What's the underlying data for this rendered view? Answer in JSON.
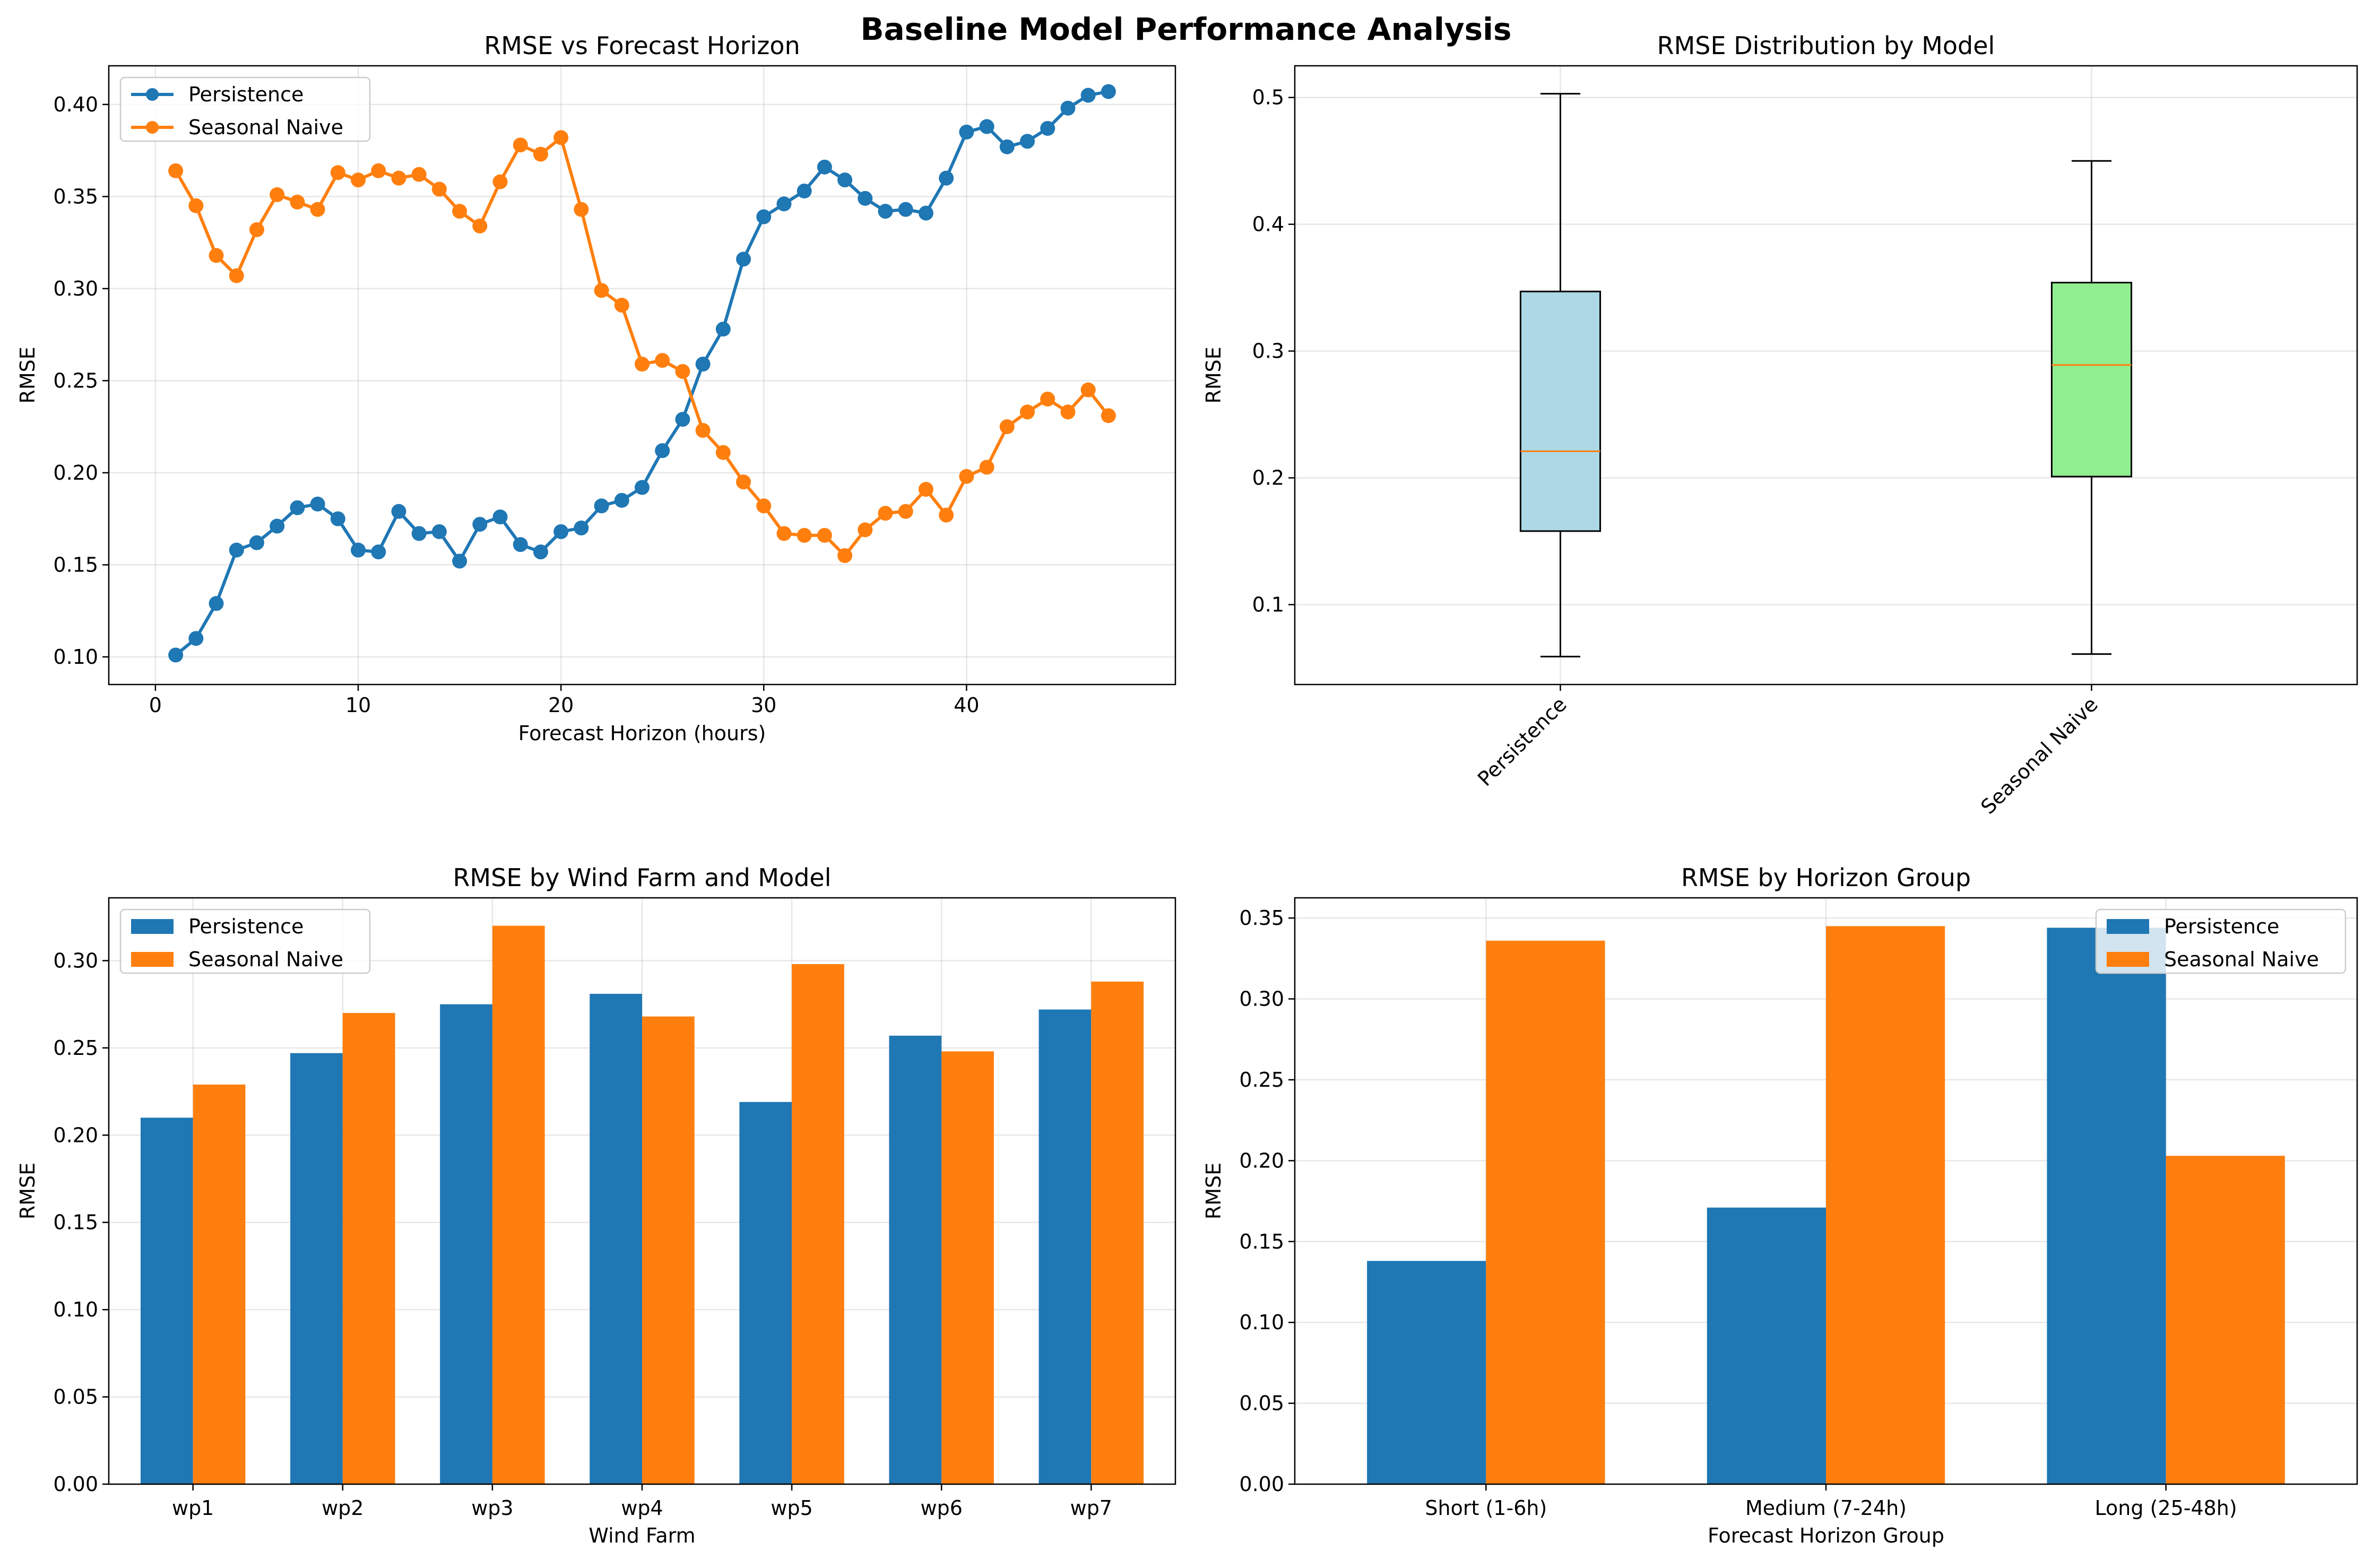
{
  "figure_title": "Baseline Model Performance Analysis",
  "colors": {
    "persistence": "#1f77b4",
    "seasonal_naive": "#ff7f0e",
    "box_persistence": "#add8e6",
    "box_seasonal": "#90ee90",
    "median": "#ff7f0e"
  },
  "chart_data": [
    {
      "type": "line",
      "title": "RMSE vs Forecast Horizon",
      "xlabel": "Forecast Horizon (hours)",
      "ylabel": "RMSE",
      "xlim": [
        -2.3,
        50.3
      ],
      "ylim": [
        0.085,
        0.421
      ],
      "xticks": [
        0,
        10,
        20,
        30,
        40
      ],
      "xtick_labels": [
        "0",
        "10",
        "20",
        "30",
        "40"
      ],
      "yticks": [
        0.1,
        0.15,
        0.2,
        0.25,
        0.3,
        0.35,
        0.4
      ],
      "ytick_labels": [
        "0.10",
        "0.15",
        "0.20",
        "0.25",
        "0.30",
        "0.35",
        "0.40"
      ],
      "grid": true,
      "legend_position": "upper left",
      "x": [
        1,
        2,
        3,
        4,
        5,
        6,
        7,
        8,
        9,
        10,
        11,
        12,
        13,
        14,
        15,
        16,
        17,
        18,
        19,
        20,
        21,
        22,
        23,
        24,
        25,
        26,
        27,
        28,
        29,
        30,
        31,
        32,
        33,
        34,
        35,
        36,
        37,
        38,
        39,
        40,
        41,
        42,
        43,
        44,
        45,
        46,
        47
      ],
      "series": [
        {
          "name": "Persistence",
          "values": [
            0.101,
            0.11,
            0.129,
            0.158,
            0.162,
            0.171,
            0.181,
            0.183,
            0.175,
            0.158,
            0.157,
            0.179,
            0.167,
            0.168,
            0.152,
            0.172,
            0.176,
            0.161,
            0.157,
            0.168,
            0.17,
            0.182,
            0.185,
            0.192,
            0.212,
            0.229,
            0.259,
            0.278,
            0.316,
            0.339,
            0.346,
            0.353,
            0.366,
            0.359,
            0.349,
            0.342,
            0.343,
            0.341,
            0.36,
            0.385,
            0.388,
            0.377,
            0.38,
            0.387,
            0.398,
            0.405,
            0.407
          ]
        },
        {
          "name": "Seasonal Naive",
          "values": [
            0.364,
            0.345,
            0.318,
            0.307,
            0.332,
            0.351,
            0.347,
            0.343,
            0.363,
            0.359,
            0.364,
            0.36,
            0.362,
            0.354,
            0.342,
            0.334,
            0.358,
            0.378,
            0.373,
            0.382,
            0.343,
            0.299,
            0.291,
            0.259,
            0.261,
            0.255,
            0.223,
            0.211,
            0.195,
            0.182,
            0.167,
            0.166,
            0.166,
            0.155,
            0.169,
            0.178,
            0.179,
            0.191,
            0.177,
            0.198,
            0.203,
            0.225,
            0.233,
            0.24,
            0.233,
            0.245,
            0.231
          ]
        }
      ]
    },
    {
      "type": "box",
      "title": "RMSE Distribution by Model",
      "ylabel": "RMSE",
      "ylim": [
        0.037,
        0.525
      ],
      "yticks": [
        0.1,
        0.2,
        0.3,
        0.4,
        0.5
      ],
      "ytick_labels": [
        "0.1",
        "0.2",
        "0.3",
        "0.4",
        "0.5"
      ],
      "grid": true,
      "categories": [
        "Persistence",
        "Seasonal Naive"
      ],
      "boxes": [
        {
          "name": "Persistence",
          "whisker_low": 0.059,
          "q1": 0.158,
          "median": 0.221,
          "q3": 0.347,
          "whisker_high": 0.503
        },
        {
          "name": "Seasonal Naive",
          "whisker_low": 0.061,
          "q1": 0.201,
          "median": 0.289,
          "q3": 0.354,
          "whisker_high": 0.45
        }
      ]
    },
    {
      "type": "bar",
      "title": "RMSE by Wind Farm and Model",
      "xlabel": "Wind Farm",
      "ylabel": "RMSE",
      "ylim": [
        0,
        0.336
      ],
      "yticks": [
        0.0,
        0.05,
        0.1,
        0.15,
        0.2,
        0.25,
        0.3
      ],
      "ytick_labels": [
        "0.00",
        "0.05",
        "0.10",
        "0.15",
        "0.20",
        "0.25",
        "0.30"
      ],
      "grid": true,
      "legend_position": "upper left",
      "categories": [
        "wp1",
        "wp2",
        "wp3",
        "wp4",
        "wp5",
        "wp6",
        "wp7"
      ],
      "series": [
        {
          "name": "Persistence",
          "values": [
            0.21,
            0.247,
            0.275,
            0.281,
            0.219,
            0.257,
            0.272
          ]
        },
        {
          "name": "Seasonal Naive",
          "values": [
            0.229,
            0.27,
            0.32,
            0.268,
            0.298,
            0.248,
            0.288
          ]
        }
      ]
    },
    {
      "type": "bar",
      "title": "RMSE by Horizon Group",
      "xlabel": "Forecast Horizon Group",
      "ylabel": "RMSE",
      "ylim": [
        0,
        0.3625
      ],
      "yticks": [
        0.0,
        0.05,
        0.1,
        0.15,
        0.2,
        0.25,
        0.3,
        0.35
      ],
      "ytick_labels": [
        "0.00",
        "0.05",
        "0.10",
        "0.15",
        "0.20",
        "0.25",
        "0.30",
        "0.35"
      ],
      "grid": true,
      "legend_position": "upper right",
      "categories": [
        "Short (1-6h)",
        "Medium (7-24h)",
        "Long (25-48h)"
      ],
      "series": [
        {
          "name": "Persistence",
          "values": [
            0.138,
            0.171,
            0.344
          ]
        },
        {
          "name": "Seasonal Naive",
          "values": [
            0.336,
            0.345,
            0.203
          ]
        }
      ]
    }
  ]
}
